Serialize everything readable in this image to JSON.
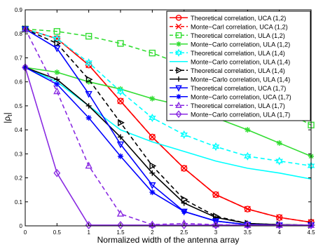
{
  "chart_data": {
    "type": "line",
    "title": "",
    "xlabel": "Normalized width of the antenna array",
    "ylabel_base": "|ρ",
    "ylabel_sub": "t",
    "ylabel_end": "|",
    "xlim": [
      0,
      4.5
    ],
    "ylim": [
      0,
      0.9
    ],
    "xticks": [
      0,
      0.5,
      1,
      1.5,
      2,
      2.5,
      3,
      3.5,
      4,
      4.5
    ],
    "xtick_labels": [
      "0",
      "0.5",
      "1",
      "1.5",
      "2",
      "2.5",
      "3",
      "3.5",
      "4",
      "4.5"
    ],
    "yticks": [
      0,
      0.1,
      0.2,
      0.3,
      0.4,
      0.5,
      0.6,
      0.7,
      0.8,
      0.9
    ],
    "ytick_labels": [
      "0",
      "0.1",
      "0.2",
      "0.3",
      "0.4",
      "0.5",
      "0.6",
      "0.7",
      "0.8",
      "0.9"
    ],
    "grid": false,
    "legend_position": "top-right",
    "x": [
      0,
      0.5,
      1,
      1.5,
      2,
      2.5,
      3,
      3.5,
      4,
      4.5
    ],
    "series": [
      {
        "name": "Theoretical correlation, UCA (1,2)",
        "color": "#ff0000",
        "dash": "solid",
        "marker": "circle",
        "values": [
          0.82,
          0.78,
          0.67,
          0.52,
          0.37,
          0.24,
          0.13,
          0.07,
          0.035,
          0.015
        ]
      },
      {
        "name": "Monte−Carl correlation, UCA (1,2)",
        "color": "#ff0000",
        "dash": "dashed",
        "marker": "x",
        "values": [
          0.82,
          0.78,
          0.67,
          0.52,
          0.37,
          0.24,
          0.13,
          0.07,
          0.035,
          0.015
        ]
      },
      {
        "name": "Theoretical correlation, ULA (1,2)",
        "color": "#33dd33",
        "dash": "dashed",
        "marker": "square",
        "values": [
          0.82,
          0.81,
          0.79,
          0.76,
          0.72,
          0.67,
          0.61,
          0.55,
          0.49,
          0.42
        ]
      },
      {
        "name": "Monte−Carlo correlation, ULA (1,2)",
        "color": "#33dd33",
        "dash": "solid",
        "marker": "star",
        "values": [
          0.66,
          0.64,
          0.6,
          0.57,
          0.53,
          0.5,
          0.45,
          0.4,
          0.345,
          0.29
        ]
      },
      {
        "name": "Theoretical correlation, ULA (1,4)",
        "color": "#00ffff",
        "dash": "dashed",
        "marker": "hexagram",
        "values": [
          0.82,
          0.78,
          0.68,
          0.56,
          0.45,
          0.38,
          0.33,
          0.29,
          0.27,
          0.25
        ]
      },
      {
        "name": "Monte−Carlo correlation, ULA (1,4)",
        "color": "#00ffff",
        "dash": "solid",
        "marker": "none",
        "values": [
          0.66,
          0.6,
          0.5,
          0.4,
          0.35,
          0.31,
          0.27,
          0.24,
          0.22,
          0.195
        ]
      },
      {
        "name": "Theoretical correlation, ULA (1,4)",
        "color": "#000000",
        "dash": "dashed",
        "marker": "triangle-right",
        "values": [
          0.82,
          0.76,
          0.61,
          0.43,
          0.25,
          0.11,
          0.04,
          0.01,
          0.005,
          0.003
        ]
      },
      {
        "name": "Monte−Carlo correlation, ULA (1,4)",
        "color": "#000000",
        "dash": "solid",
        "marker": "plus",
        "values": [
          0.66,
          0.61,
          0.5,
          0.37,
          0.22,
          0.095,
          0.035,
          0.01,
          0.005,
          0.003
        ]
      },
      {
        "name": "Theoretical correlation, UCA (1,7)",
        "color": "#0000ff",
        "dash": "solid",
        "marker": "triangle-down",
        "values": [
          0.82,
          0.74,
          0.55,
          0.34,
          0.17,
          0.06,
          0.02,
          0.005,
          0.003,
          0.003
        ]
      },
      {
        "name": "Monte−Carlo correlation, UCA (1,7)",
        "color": "#0000ff",
        "dash": "solid",
        "marker": "star",
        "values": [
          0.66,
          0.59,
          0.45,
          0.29,
          0.14,
          0.06,
          0.02,
          0.005,
          0.003,
          0.003
        ]
      },
      {
        "name": "Theoretical correlation, ULA (1,7)",
        "color": "#8a2be2",
        "dash": "dashed",
        "marker": "triangle-up",
        "values": [
          0.82,
          0.56,
          0.25,
          0.05,
          0.005,
          0.01,
          0.005,
          0.003,
          0.003,
          0.003
        ]
      },
      {
        "name": "Monte−Carlo correlation, ULA (1,7)",
        "color": "#8a2be2",
        "dash": "solid",
        "marker": "diamond",
        "values": [
          0.66,
          0.22,
          0.003,
          0.003,
          0.003,
          0.003,
          0.003,
          0.003,
          0.003,
          0.003
        ]
      }
    ]
  }
}
